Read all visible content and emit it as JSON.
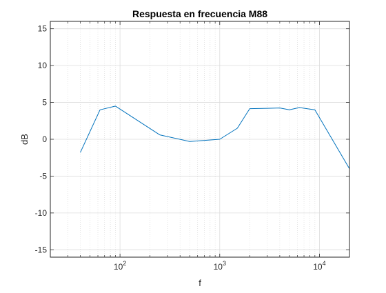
{
  "chart_data": {
    "type": "line",
    "title": "Respuesta en frecuencia M88",
    "xlabel": "f",
    "ylabel": "dB",
    "xscale": "log",
    "xlim": [
      20,
      20000
    ],
    "ylim": [
      -16,
      16
    ],
    "grid": true,
    "minor_grid_x": true,
    "legend": "none",
    "x_ticks": [
      {
        "value": 100,
        "base": "10",
        "exp": "2"
      },
      {
        "value": 1000,
        "base": "10",
        "exp": "3"
      },
      {
        "value": 10000,
        "base": "10",
        "exp": "4"
      }
    ],
    "y_ticks": [
      {
        "value": 15,
        "label": "15"
      },
      {
        "value": 10,
        "label": "10"
      },
      {
        "value": 5,
        "label": "5"
      },
      {
        "value": 0,
        "label": "0"
      },
      {
        "value": -5,
        "label": "-5"
      },
      {
        "value": -10,
        "label": "-10"
      },
      {
        "value": -15,
        "label": "-15"
      }
    ],
    "series": [
      {
        "color": "#0072bd",
        "x": [
          40,
          63,
          90,
          250,
          500,
          1000,
          1500,
          2000,
          3000,
          4000,
          5000,
          6300,
          8000,
          9000,
          20000
        ],
        "y": [
          -1.8,
          4.0,
          4.5,
          0.6,
          -0.3,
          0.0,
          1.5,
          4.15,
          4.2,
          4.25,
          4.0,
          4.3,
          4.1,
          4.0,
          -4.0
        ]
      }
    ]
  }
}
